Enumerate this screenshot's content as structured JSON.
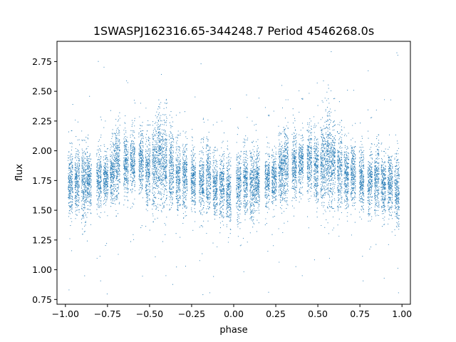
{
  "chart_data": {
    "type": "scatter",
    "title": "1SWASPJ162316.65-344248.7 Period 4546268.0s",
    "xlabel": "phase",
    "ylabel": "flux",
    "xlim": [
      -1.05,
      1.05
    ],
    "ylim": [
      0.71,
      2.92
    ],
    "x_ticks": [
      "−1.00",
      "−0.75",
      "−0.50",
      "−0.25",
      "0.00",
      "0.25",
      "0.50",
      "0.75",
      "1.00"
    ],
    "x_tick_values": [
      -1.0,
      -0.75,
      -0.5,
      -0.25,
      0.0,
      0.25,
      0.5,
      0.75,
      1.0
    ],
    "y_ticks": [
      "0.75",
      "1.00",
      "1.25",
      "1.50",
      "1.75",
      "2.00",
      "2.25",
      "2.50",
      "2.75"
    ],
    "y_tick_values": [
      0.75,
      1.0,
      1.25,
      1.5,
      1.75,
      2.0,
      2.25,
      2.5,
      2.75
    ],
    "grid": false,
    "point_color": "#1f77b4",
    "series": [
      {
        "points_summary": "Phase-folded light curve; pattern repeats every 1.0 in phase. Points cluster in vertical bands; flux mostly 1.5–2.2 with outliers 0.8–2.8.",
        "bands": [
          {
            "x": -0.97,
            "y": 1.72,
            "spread": 0.14
          },
          {
            "x": -0.93,
            "y": 1.74,
            "spread": 0.14
          },
          {
            "x": -0.89,
            "y": 1.72,
            "spread": 0.15
          },
          {
            "x": -0.86,
            "y": 1.75,
            "spread": 0.12
          },
          {
            "x": -0.8,
            "y": 1.76,
            "spread": 0.11
          },
          {
            "x": -0.76,
            "y": 1.77,
            "spread": 0.1
          },
          {
            "x": -0.72,
            "y": 1.82,
            "spread": 0.13
          },
          {
            "x": -0.69,
            "y": 1.9,
            "spread": 0.16
          },
          {
            "x": -0.64,
            "y": 1.88,
            "spread": 0.13
          },
          {
            "x": -0.6,
            "y": 1.9,
            "spread": 0.12
          },
          {
            "x": -0.55,
            "y": 1.92,
            "spread": 0.13
          },
          {
            "x": -0.51,
            "y": 1.84,
            "spread": 0.15
          },
          {
            "x": -0.47,
            "y": 1.88,
            "spread": 0.17
          },
          {
            "x": -0.44,
            "y": 1.95,
            "spread": 0.2
          },
          {
            "x": -0.41,
            "y": 1.9,
            "spread": 0.18
          },
          {
            "x": -0.37,
            "y": 1.85,
            "spread": 0.16
          },
          {
            "x": -0.33,
            "y": 1.78,
            "spread": 0.14
          },
          {
            "x": -0.29,
            "y": 1.8,
            "spread": 0.13
          },
          {
            "x": -0.24,
            "y": 1.76,
            "spread": 0.12
          },
          {
            "x": -0.19,
            "y": 1.74,
            "spread": 0.13
          },
          {
            "x": -0.15,
            "y": 1.78,
            "spread": 0.14
          },
          {
            "x": -0.11,
            "y": 1.7,
            "spread": 0.12
          },
          {
            "x": -0.07,
            "y": 1.72,
            "spread": 0.13
          },
          {
            "x": -0.03,
            "y": 1.66,
            "spread": 0.14
          }
        ]
      }
    ]
  }
}
